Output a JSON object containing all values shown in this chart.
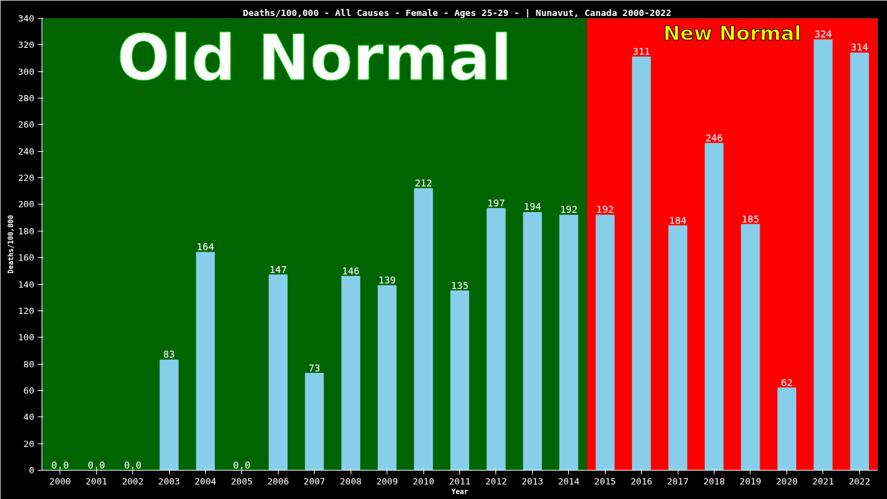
{
  "chart_data": {
    "type": "bar",
    "title": "Deaths/100,000 - All Causes - Female - Ages 25-29 -  | Nunavut, Canada 2000-2022",
    "xlabel": "Year",
    "ylabel": "Deaths/100,000",
    "x": [
      2000,
      2001,
      2002,
      2003,
      2004,
      2005,
      2006,
      2007,
      2008,
      2009,
      2010,
      2011,
      2012,
      2013,
      2014,
      2015,
      2016,
      2017,
      2018,
      2019,
      2020,
      2021,
      2022
    ],
    "values": [
      0,
      0,
      0,
      83,
      164,
      0,
      147,
      73,
      146,
      139,
      212,
      135,
      197,
      194,
      192,
      192,
      311,
      184,
      246,
      185,
      62,
      324,
      314
    ],
    "value_labels": [
      "0.0",
      "0.0",
      "0.0",
      "83",
      "164",
      "0.0",
      "147",
      "73",
      "146",
      "139",
      "212",
      "135",
      "197",
      "194",
      "192",
      "192",
      "311",
      "184",
      "246",
      "185",
      "62",
      "324",
      "314"
    ],
    "color": "#87ceeb",
    "xlim": [
      1999.5,
      2022.5
    ],
    "xticks": [
      2000,
      2001,
      2002,
      2003,
      2004,
      2005,
      2006,
      2007,
      2008,
      2009,
      2010,
      2011,
      2012,
      2013,
      2014,
      2015,
      2016,
      2017,
      2018,
      2019,
      2020,
      2021,
      2022
    ],
    "ylim": [
      0,
      340
    ],
    "yticks": [
      0,
      20,
      40,
      60,
      80,
      100,
      120,
      140,
      160,
      180,
      200,
      220,
      240,
      260,
      280,
      300,
      320,
      340
    ],
    "bands": [
      {
        "axis": "x",
        "from": 1999.5,
        "to": 2014.5,
        "label": "Old Normal",
        "color": "#006400"
      },
      {
        "axis": "x",
        "from": 2014.5,
        "to": 2022.5,
        "label": "New Normal",
        "color": "#ff0000"
      }
    ],
    "grid": false
  }
}
